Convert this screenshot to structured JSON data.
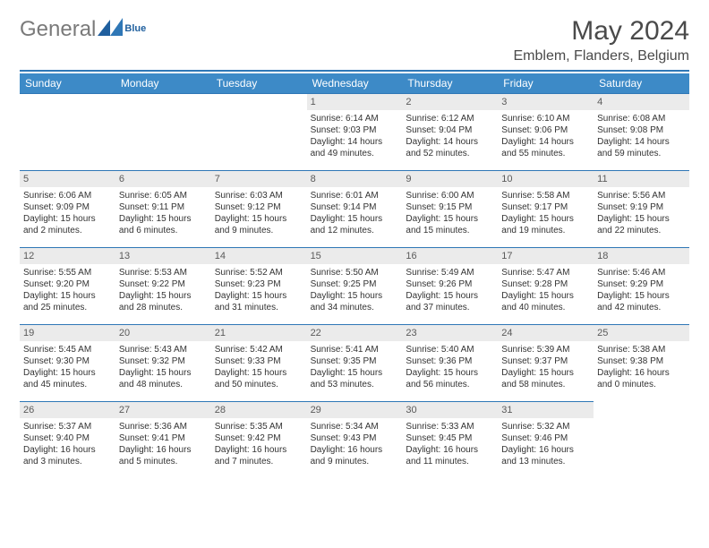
{
  "brand": {
    "part1": "General",
    "part2": "Blue"
  },
  "title": "May 2024",
  "location": "Emblem, Flanders, Belgium",
  "dow": [
    "Sunday",
    "Monday",
    "Tuesday",
    "Wednesday",
    "Thursday",
    "Friday",
    "Saturday"
  ],
  "colors": {
    "accent": "#3d8ac7",
    "rule": "#2f77b6",
    "daybg": "#ebebeb",
    "text": "#333333",
    "logo_gray": "#7a7a7a",
    "logo_blue": "#1f5f9e"
  },
  "leading_blanks": 3,
  "days": [
    {
      "n": 1,
      "sr": "6:14 AM",
      "ss": "9:03 PM",
      "dl": "14 hours and 49 minutes."
    },
    {
      "n": 2,
      "sr": "6:12 AM",
      "ss": "9:04 PM",
      "dl": "14 hours and 52 minutes."
    },
    {
      "n": 3,
      "sr": "6:10 AM",
      "ss": "9:06 PM",
      "dl": "14 hours and 55 minutes."
    },
    {
      "n": 4,
      "sr": "6:08 AM",
      "ss": "9:08 PM",
      "dl": "14 hours and 59 minutes."
    },
    {
      "n": 5,
      "sr": "6:06 AM",
      "ss": "9:09 PM",
      "dl": "15 hours and 2 minutes."
    },
    {
      "n": 6,
      "sr": "6:05 AM",
      "ss": "9:11 PM",
      "dl": "15 hours and 6 minutes."
    },
    {
      "n": 7,
      "sr": "6:03 AM",
      "ss": "9:12 PM",
      "dl": "15 hours and 9 minutes."
    },
    {
      "n": 8,
      "sr": "6:01 AM",
      "ss": "9:14 PM",
      "dl": "15 hours and 12 minutes."
    },
    {
      "n": 9,
      "sr": "6:00 AM",
      "ss": "9:15 PM",
      "dl": "15 hours and 15 minutes."
    },
    {
      "n": 10,
      "sr": "5:58 AM",
      "ss": "9:17 PM",
      "dl": "15 hours and 19 minutes."
    },
    {
      "n": 11,
      "sr": "5:56 AM",
      "ss": "9:19 PM",
      "dl": "15 hours and 22 minutes."
    },
    {
      "n": 12,
      "sr": "5:55 AM",
      "ss": "9:20 PM",
      "dl": "15 hours and 25 minutes."
    },
    {
      "n": 13,
      "sr": "5:53 AM",
      "ss": "9:22 PM",
      "dl": "15 hours and 28 minutes."
    },
    {
      "n": 14,
      "sr": "5:52 AM",
      "ss": "9:23 PM",
      "dl": "15 hours and 31 minutes."
    },
    {
      "n": 15,
      "sr": "5:50 AM",
      "ss": "9:25 PM",
      "dl": "15 hours and 34 minutes."
    },
    {
      "n": 16,
      "sr": "5:49 AM",
      "ss": "9:26 PM",
      "dl": "15 hours and 37 minutes."
    },
    {
      "n": 17,
      "sr": "5:47 AM",
      "ss": "9:28 PM",
      "dl": "15 hours and 40 minutes."
    },
    {
      "n": 18,
      "sr": "5:46 AM",
      "ss": "9:29 PM",
      "dl": "15 hours and 42 minutes."
    },
    {
      "n": 19,
      "sr": "5:45 AM",
      "ss": "9:30 PM",
      "dl": "15 hours and 45 minutes."
    },
    {
      "n": 20,
      "sr": "5:43 AM",
      "ss": "9:32 PM",
      "dl": "15 hours and 48 minutes."
    },
    {
      "n": 21,
      "sr": "5:42 AM",
      "ss": "9:33 PM",
      "dl": "15 hours and 50 minutes."
    },
    {
      "n": 22,
      "sr": "5:41 AM",
      "ss": "9:35 PM",
      "dl": "15 hours and 53 minutes."
    },
    {
      "n": 23,
      "sr": "5:40 AM",
      "ss": "9:36 PM",
      "dl": "15 hours and 56 minutes."
    },
    {
      "n": 24,
      "sr": "5:39 AM",
      "ss": "9:37 PM",
      "dl": "15 hours and 58 minutes."
    },
    {
      "n": 25,
      "sr": "5:38 AM",
      "ss": "9:38 PM",
      "dl": "16 hours and 0 minutes."
    },
    {
      "n": 26,
      "sr": "5:37 AM",
      "ss": "9:40 PM",
      "dl": "16 hours and 3 minutes."
    },
    {
      "n": 27,
      "sr": "5:36 AM",
      "ss": "9:41 PM",
      "dl": "16 hours and 5 minutes."
    },
    {
      "n": 28,
      "sr": "5:35 AM",
      "ss": "9:42 PM",
      "dl": "16 hours and 7 minutes."
    },
    {
      "n": 29,
      "sr": "5:34 AM",
      "ss": "9:43 PM",
      "dl": "16 hours and 9 minutes."
    },
    {
      "n": 30,
      "sr": "5:33 AM",
      "ss": "9:45 PM",
      "dl": "16 hours and 11 minutes."
    },
    {
      "n": 31,
      "sr": "5:32 AM",
      "ss": "9:46 PM",
      "dl": "16 hours and 13 minutes."
    }
  ],
  "labels": {
    "sunrise": "Sunrise:",
    "sunset": "Sunset:",
    "daylight": "Daylight:"
  }
}
